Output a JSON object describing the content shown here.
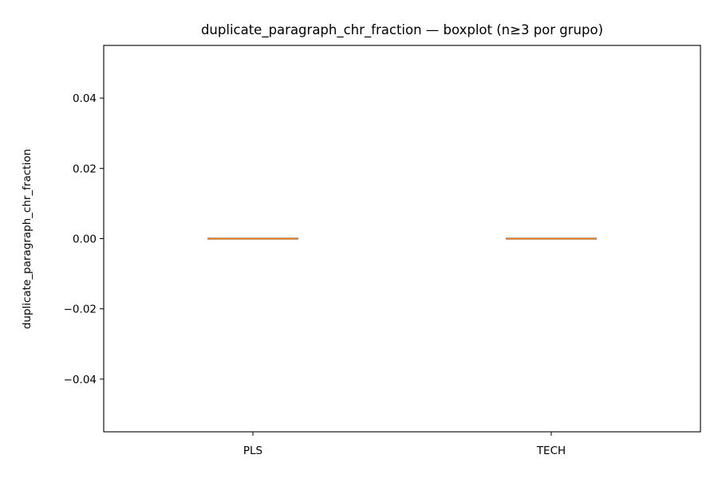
{
  "chart_data": {
    "type": "box",
    "title": "duplicate_paragraph_chr_fraction — boxplot (n≥3 por grupo)",
    "xlabel": "",
    "ylabel": "duplicate_paragraph_chr_fraction",
    "categories": [
      "PLS",
      "TECH"
    ],
    "ylim": [
      -0.055,
      0.055
    ],
    "yticks": [
      0.04,
      0.02,
      0.0,
      -0.02,
      -0.04
    ],
    "ytick_labels": [
      "0.04",
      "0.02",
      "0.00",
      "−0.02",
      "−0.04"
    ],
    "boxes": [
      {
        "category": "PLS",
        "q1": 0.0,
        "median": 0.0,
        "q3": 0.0,
        "whisker_low": 0.0,
        "whisker_high": 0.0
      },
      {
        "category": "TECH",
        "q1": 0.0,
        "median": 0.0,
        "q3": 0.0,
        "whisker_low": 0.0,
        "whisker_high": 0.0
      }
    ],
    "grid": false,
    "colors": {
      "box": "#000000",
      "median": "#ff7f0e",
      "axes": "#000000"
    }
  }
}
